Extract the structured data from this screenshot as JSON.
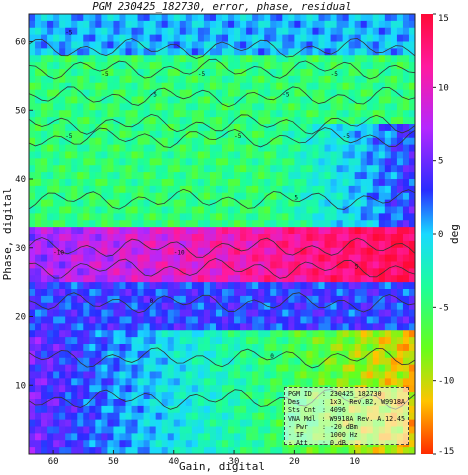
{
  "chart_data": {
    "type": "heatmap",
    "title": "PGM 230425_182730, error, phase, residual",
    "xlabel": "Gain, digital",
    "ylabel": "Phase, digital",
    "colorbar_label": "deg",
    "x_ticks": [
      60,
      50,
      40,
      30,
      20,
      10
    ],
    "y_ticks": [
      10,
      20,
      30,
      40,
      50,
      60
    ],
    "colorbar_ticks": [
      15,
      10,
      5,
      0,
      -5,
      -10,
      -15
    ],
    "xlim": [
      64,
      0
    ],
    "ylim": [
      0,
      64
    ],
    "clim": [
      -15,
      15
    ],
    "contour_labels": [
      "-5",
      "-5",
      "-5",
      "-5",
      "-5",
      "-5",
      "-5",
      "-10",
      "-10",
      "-5",
      "-5",
      "5",
      "0",
      "0",
      "5"
    ],
    "bands": [
      {
        "phase_range": [
          58,
          64
        ],
        "value": 0.5
      },
      {
        "phase_range": [
          48,
          58
        ],
        "value": -5
      },
      {
        "phase_range": [
          33,
          48
        ],
        "value": -5
      },
      {
        "phase_range": [
          25,
          33
        ],
        "value": 8
      },
      {
        "phase_range": [
          18,
          25
        ],
        "value": 3
      },
      {
        "phase_range": [
          0,
          18
        ],
        "value": -3
      }
    ]
  },
  "info_box": {
    "rows": [
      {
        "key": "PGM  ID",
        "value": ": 230425_182730"
      },
      {
        "key": "Des",
        "value": ": 1x3, Rev.B2, W9918A"
      },
      {
        "key": "Sts Cnt",
        "value": ": 4096"
      },
      {
        "key": "VNA Mdl",
        "value": ": W9918A Rev. A.12.45"
      },
      {
        "key": "-  Pwr",
        "value": ": -20 dBm"
      },
      {
        "key": "-  IF",
        "value": ": 1000 Hz"
      },
      {
        "key": "-  Att",
        "value": ": 0 dB"
      }
    ]
  }
}
